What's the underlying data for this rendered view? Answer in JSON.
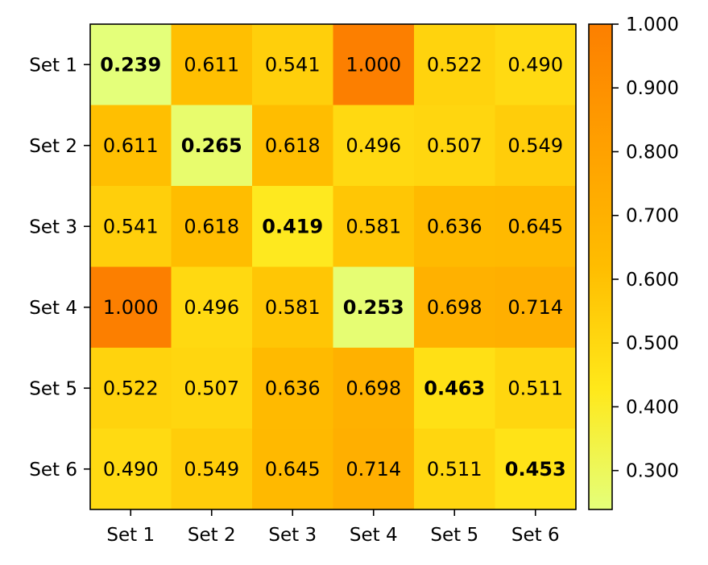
{
  "chart_data": {
    "type": "heatmap",
    "title": "",
    "xlabel": "",
    "ylabel": "",
    "x_categories": [
      "Set 1",
      "Set 2",
      "Set 3",
      "Set 4",
      "Set 5",
      "Set 6"
    ],
    "y_categories": [
      "Set 1",
      "Set 2",
      "Set 3",
      "Set 4",
      "Set 5",
      "Set 6"
    ],
    "values": [
      [
        0.239,
        0.611,
        0.541,
        1.0,
        0.522,
        0.49
      ],
      [
        0.611,
        0.265,
        0.618,
        0.496,
        0.507,
        0.549
      ],
      [
        0.541,
        0.618,
        0.419,
        0.581,
        0.636,
        0.645
      ],
      [
        1.0,
        0.496,
        0.581,
        0.253,
        0.698,
        0.714
      ],
      [
        0.522,
        0.507,
        0.636,
        0.698,
        0.463,
        0.511
      ],
      [
        0.49,
        0.549,
        0.645,
        0.714,
        0.511,
        0.453
      ]
    ],
    "labels": [
      [
        "0.239",
        "0.611",
        "0.541",
        "1.000",
        "0.522",
        "0.490"
      ],
      [
        "0.611",
        "0.265",
        "0.618",
        "0.496",
        "0.507",
        "0.549"
      ],
      [
        "0.541",
        "0.618",
        "0.419",
        "0.581",
        "0.636",
        "0.645"
      ],
      [
        "1.000",
        "0.496",
        "0.581",
        "0.253",
        "0.698",
        "0.714"
      ],
      [
        "0.522",
        "0.507",
        "0.636",
        "0.698",
        "0.463",
        "0.511"
      ],
      [
        "0.490",
        "0.549",
        "0.645",
        "0.714",
        "0.511",
        "0.453"
      ]
    ],
    "diagonal_bold": true,
    "colormap": "Wistia",
    "colormap_stops": [
      "#e4ff7a",
      "#ffe81a",
      "#ffbd00",
      "#ffa000",
      "#fc7f00"
    ],
    "colorbar": {
      "range": [
        0.239,
        1.0
      ],
      "ticks": [
        0.3,
        0.4,
        0.5,
        0.6,
        0.7,
        0.8,
        0.9,
        1.0
      ],
      "tick_labels": [
        "0.300",
        "0.400",
        "0.500",
        "0.600",
        "0.700",
        "0.800",
        "0.900",
        "1.000"
      ],
      "placement": "right"
    }
  }
}
